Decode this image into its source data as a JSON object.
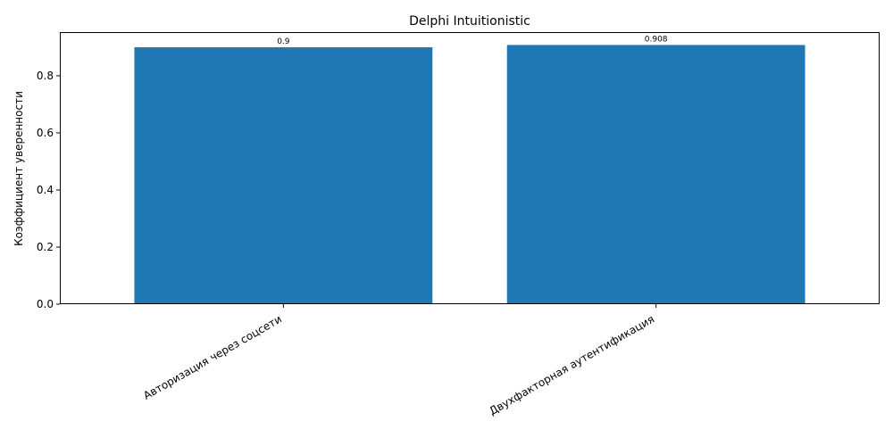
{
  "chart_data": {
    "type": "bar",
    "title": "Delphi Intuitionistic",
    "xlabel": "",
    "ylabel": "Коэффициент уверенности",
    "categories": [
      "Авторизация через соцсети",
      "Двухфакторная аутентификация"
    ],
    "values": [
      0.9,
      0.908
    ],
    "data_labels": [
      "0.9",
      "0.908"
    ],
    "ylim": [
      0,
      0.953
    ],
    "yticks": [
      0.0,
      0.2,
      0.4,
      0.6,
      0.8
    ],
    "ytick_labels": [
      "0.0",
      "0.2",
      "0.4",
      "0.6",
      "0.8"
    ],
    "bar_color": "#1f77b4",
    "grid": false,
    "legend": "none"
  }
}
